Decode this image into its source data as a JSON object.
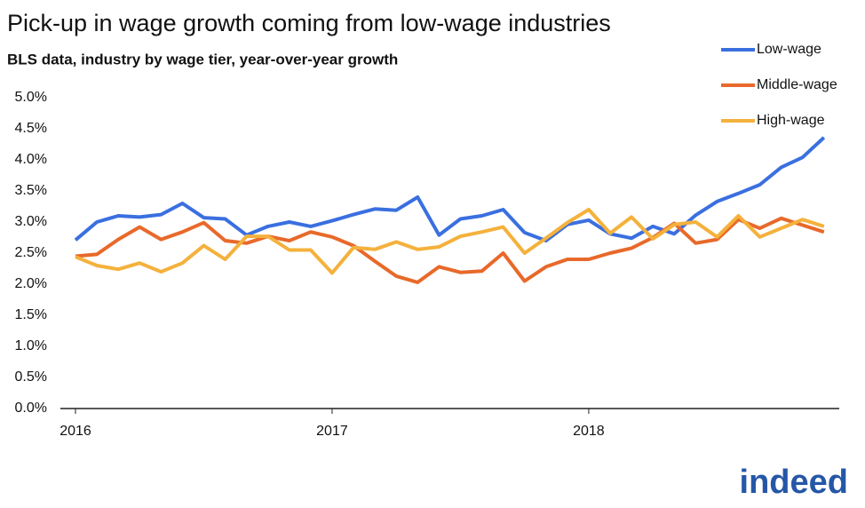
{
  "chart_data": {
    "type": "line",
    "title": "Pick-up in wage growth coming from low-wage industries",
    "subtitle": "BLS data, industry by wage tier, year-over-year growth",
    "categories": [
      "2016",
      null,
      null,
      null,
      null,
      null,
      null,
      null,
      null,
      null,
      null,
      null,
      "2017",
      null,
      null,
      null,
      null,
      null,
      null,
      null,
      null,
      null,
      null,
      null,
      "2018",
      null,
      null,
      null,
      null,
      null,
      null,
      null,
      null,
      null,
      null,
      null
    ],
    "series": [
      {
        "name": "Low-wage",
        "color": "#3a6fe0",
        "values": [
          2.71,
          3.0,
          3.1,
          3.08,
          3.12,
          3.3,
          3.07,
          3.05,
          2.79,
          2.93,
          3.0,
          2.93,
          3.02,
          3.12,
          3.21,
          3.19,
          3.4,
          2.79,
          3.05,
          3.1,
          3.2,
          2.83,
          2.7,
          2.96,
          3.03,
          2.81,
          2.74,
          2.93,
          2.81,
          3.11,
          3.33,
          3.46,
          3.6,
          3.88,
          4.04,
          4.36
        ]
      },
      {
        "name": "Middle-wage",
        "color": "#e8692a",
        "values": [
          2.45,
          2.48,
          2.72,
          2.92,
          2.72,
          2.84,
          2.99,
          2.7,
          2.66,
          2.77,
          2.7,
          2.84,
          2.76,
          2.62,
          2.37,
          2.13,
          2.03,
          2.28,
          2.19,
          2.21,
          2.5,
          2.05,
          2.28,
          2.4,
          2.4,
          2.5,
          2.58,
          2.75,
          2.98,
          2.66,
          2.72,
          3.04,
          2.9,
          3.06,
          2.95,
          2.84
        ]
      },
      {
        "name": "High-wage",
        "color": "#f4b13c",
        "values": [
          2.44,
          2.3,
          2.24,
          2.34,
          2.2,
          2.34,
          2.62,
          2.4,
          2.77,
          2.77,
          2.55,
          2.55,
          2.18,
          2.59,
          2.56,
          2.68,
          2.56,
          2.6,
          2.77,
          2.84,
          2.92,
          2.5,
          2.74,
          2.99,
          3.2,
          2.82,
          3.08,
          2.73,
          2.96,
          3.0,
          2.76,
          3.1,
          2.76,
          2.9,
          3.04,
          2.93
        ]
      }
    ],
    "ylim": [
      0,
      5
    ],
    "yticks": [
      {
        "value": 0,
        "label": "0.0%"
      },
      {
        "value": 0.5,
        "label": "0.5%"
      },
      {
        "value": 1,
        "label": "1.0%"
      },
      {
        "value": 1.5,
        "label": "1.5%"
      },
      {
        "value": 2,
        "label": "2.0%"
      },
      {
        "value": 2.5,
        "label": "2.5%"
      },
      {
        "value": 3,
        "label": "3.0%"
      },
      {
        "value": 3.5,
        "label": "3.5%"
      },
      {
        "value": 4,
        "label": "4.0%"
      },
      {
        "value": 4.5,
        "label": "4.5%"
      },
      {
        "value": 5,
        "label": "5.0%"
      }
    ],
    "grid": false,
    "legend": "top-right",
    "logo": "indeed"
  }
}
